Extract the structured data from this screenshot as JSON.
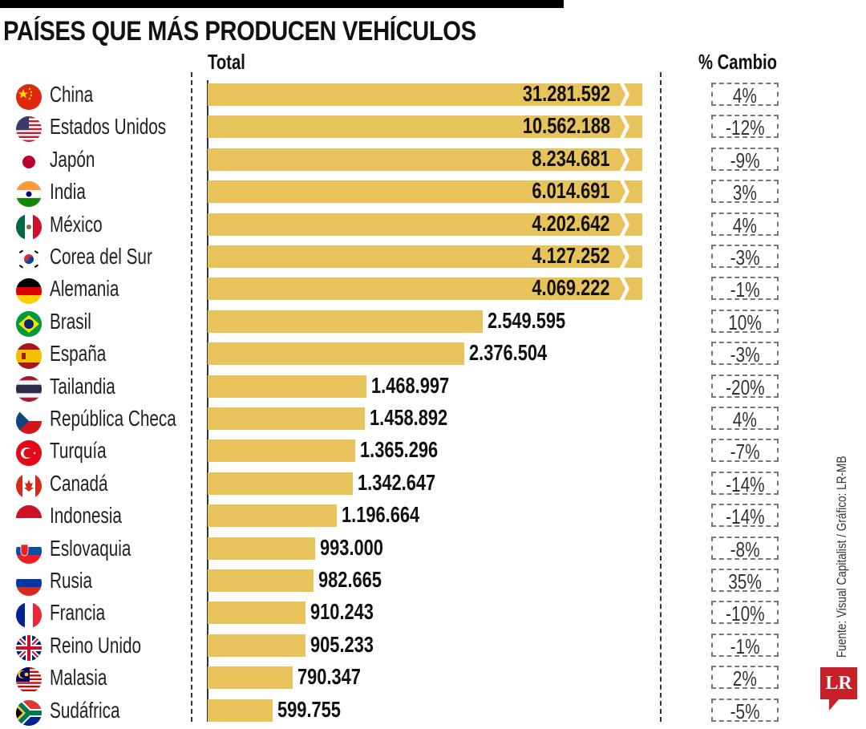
{
  "chart_data": {
    "type": "bar",
    "orientation": "horizontal",
    "title": "PAÍSES QUE MÁS PRODUCEN VEHÍCULOS",
    "xlabel": "Total",
    "ylabel": "",
    "change_column_label": "% Cambio",
    "axis_break_note": "Bars for the top 7 countries are truncated (broken axis shown with a chevron)",
    "truncate_above": 4030000,
    "categories": [
      "China",
      "Estados Unidos",
      "Japón",
      "India",
      "México",
      "Corea del Sur",
      "Alemania",
      "Brasil",
      "España",
      "Tailandia",
      "República Checa",
      "Turquía",
      "Canadá",
      "Indonesia",
      "Eslovaquia",
      "Rusia",
      "Francia",
      "Reino Unido",
      "Malasia",
      "Sudáfrica"
    ],
    "values": [
      31281592,
      10562188,
      8234681,
      6014691,
      4202642,
      4127252,
      4069222,
      2549595,
      2376504,
      1468997,
      1458892,
      1365296,
      1342647,
      1196664,
      993000,
      982665,
      910243,
      905233,
      790347,
      599755
    ],
    "value_labels": [
      "31.281.592",
      "10.562.188",
      "8.234.681",
      "6.014.691",
      "4.202.642",
      "4.127.252",
      "4.069.222",
      "2.549.595",
      "2.376.504",
      "1.468.997",
      "1.458.892",
      "1.365.296",
      "1.342.647",
      "1.196.664",
      "993.000",
      "982.665",
      "910.243",
      "905.233",
      "790.347",
      "599.755"
    ],
    "change_labels": [
      "4%",
      "-12%",
      "-9%",
      "3%",
      "4%",
      "-3%",
      "-1%",
      "10%",
      "-3%",
      "-20%",
      "4%",
      "-7%",
      "-14%",
      "-14%",
      "-8%",
      "35%",
      "-10%",
      "-1%",
      "2%",
      "-5%"
    ],
    "change_values": [
      4,
      -12,
      -9,
      3,
      4,
      -3,
      -1,
      10,
      -3,
      -20,
      4,
      -7,
      -14,
      -14,
      -8,
      35,
      -10,
      -1,
      2,
      -5
    ],
    "flags": [
      "china-flag",
      "usa-flag",
      "japan-flag",
      "india-flag",
      "mexico-flag",
      "south-korea-flag",
      "germany-flag",
      "brazil-flag",
      "spain-flag",
      "thailand-flag",
      "czech-flag",
      "turkey-flag",
      "canada-flag",
      "indonesia-flag",
      "slovakia-flag",
      "russia-flag",
      "france-flag",
      "uk-flag",
      "malaysia-flag",
      "south-africa-flag"
    ],
    "grid": false,
    "legend": "none"
  },
  "colors": {
    "bar": "#e8c35c",
    "text": "#111111",
    "logo": "#c8202a"
  },
  "footer": {
    "source": "Fuente: Visual Capitalist / Gráfico: LR-MB",
    "logo": "LR"
  }
}
